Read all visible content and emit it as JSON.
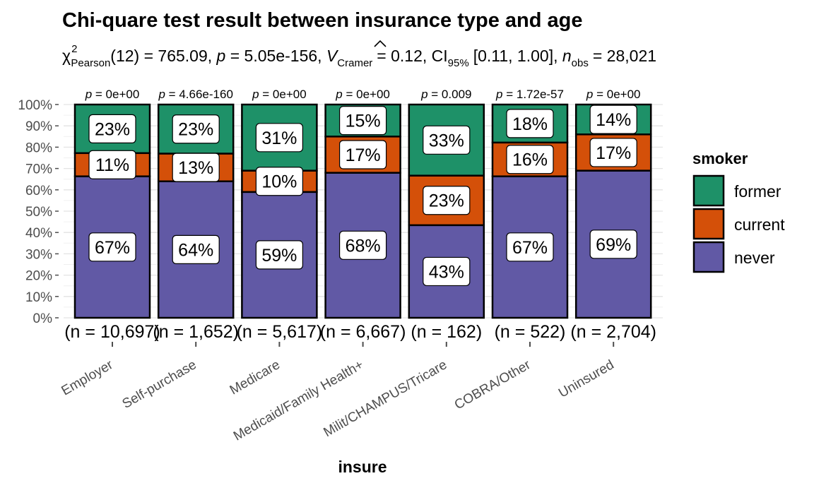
{
  "chart_data": {
    "type": "bar",
    "stacked": true,
    "title": "Chi-quare test result between insurance type and age",
    "subtitle": {
      "chi_symbol": "χ",
      "chi_sup": "2",
      "chi_sub": "Pearson",
      "stat_text": "(12) = 765.09,",
      "p_symbol": "p",
      "p_text": "= 5.05e-156,",
      "v_symbol": "V",
      "v_sub": "Cramer",
      "v_text": "= 0.12, CI",
      "ci_sub": "95%",
      "ci_text": "[0.11, 1.00],",
      "n_symbol": "n",
      "n_sub": "obs",
      "n_text": "= 28,021"
    },
    "xlabel": "insure",
    "ylabel": "",
    "ylim": [
      0,
      100
    ],
    "yticks": [
      "0%",
      "10%",
      "20%",
      "30%",
      "40%",
      "50%",
      "60%",
      "70%",
      "80%",
      "90%",
      "100%"
    ],
    "grid": true,
    "legend": {
      "title": "smoker",
      "position": "right"
    },
    "categories": [
      "Employer",
      "Self-purchase",
      "Medicare",
      "Medicaid/Family Health+",
      "Milit/CHAMPUS/Tricare",
      "COBRA/Other",
      "Uninsured"
    ],
    "p_labels": [
      "p = 0e+00",
      "p = 4.66e-160",
      "p = 0e+00",
      "p = 0e+00",
      "p = 0.009",
      "p = 1.72e-57",
      "p = 0e+00"
    ],
    "n_labels": [
      "(n = 10,697)",
      "(n = 1,652)",
      "(n = 5,617)",
      "(n = 6,667)",
      "(n = 162)",
      "(n = 522)",
      "(n = 2,704)"
    ],
    "series": [
      {
        "name": "never",
        "color": "#6159a5",
        "values": [
          67,
          64,
          59,
          68,
          43,
          67,
          69
        ],
        "labels": [
          "67%",
          "64%",
          "59%",
          "68%",
          "43%",
          "67%",
          "69%"
        ]
      },
      {
        "name": "current",
        "color": "#d45009",
        "values": [
          11,
          13,
          10,
          17,
          23,
          16,
          17
        ],
        "labels": [
          "11%",
          "13%",
          "10%",
          "17%",
          "23%",
          "16%",
          "17%"
        ]
      },
      {
        "name": "former",
        "color": "#1e9168",
        "values": [
          23,
          23,
          31,
          15,
          33,
          18,
          14
        ],
        "labels": [
          "23%",
          "23%",
          "31%",
          "15%",
          "33%",
          "18%",
          "14%"
        ]
      }
    ]
  }
}
